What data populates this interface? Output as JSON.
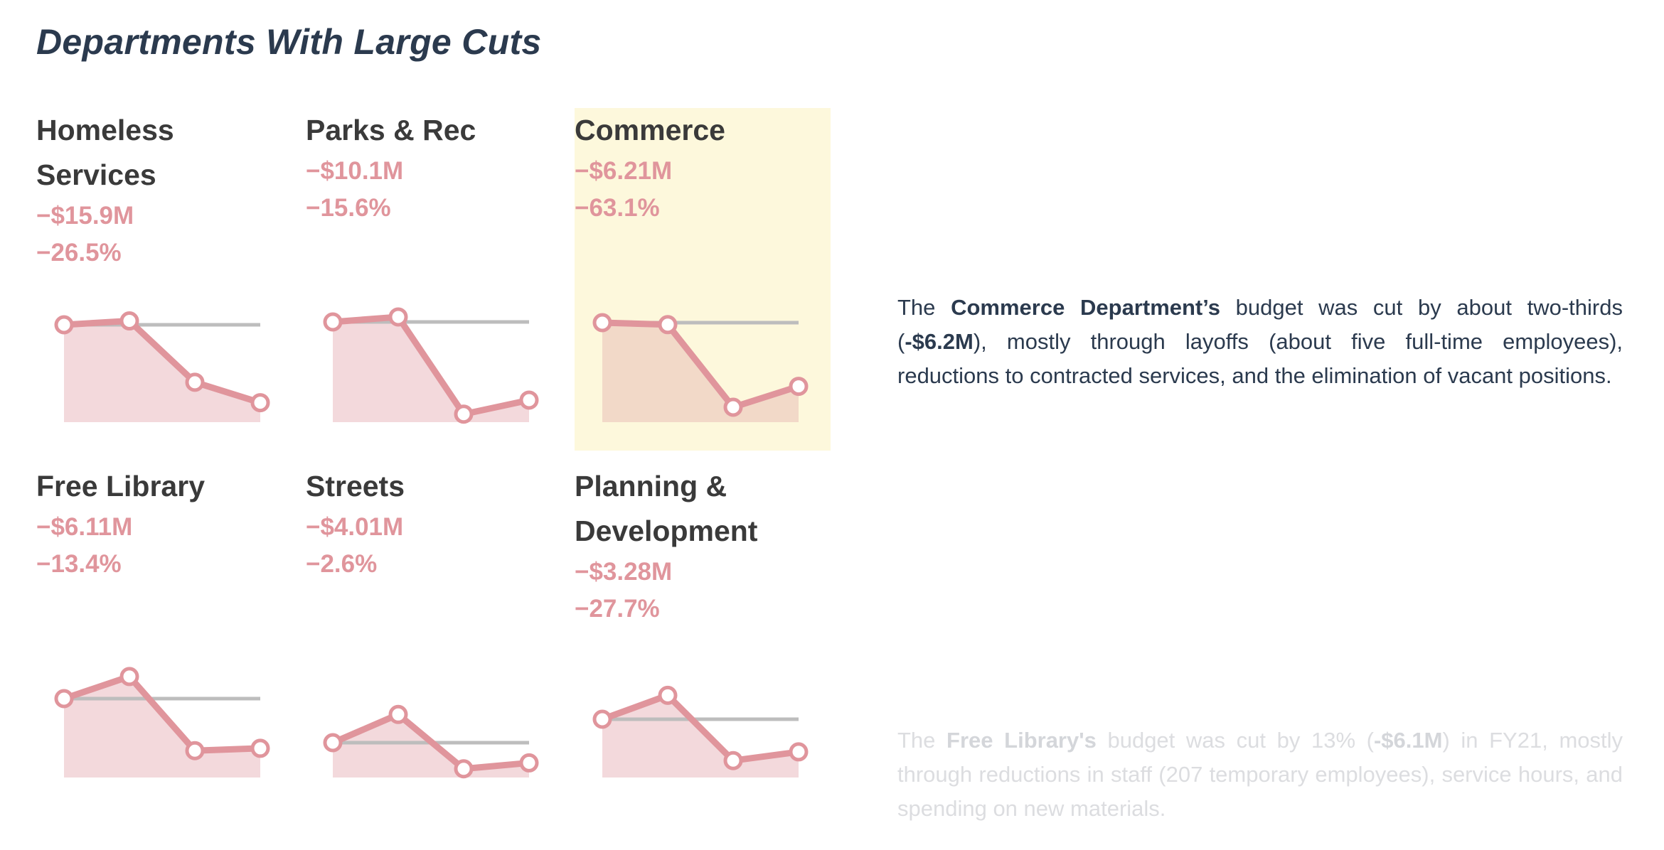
{
  "title": "Departments With Large Cuts",
  "colors": {
    "title": "#2b3a4e",
    "department_name": "#3a3a3a",
    "cut_value": "#e0959c",
    "line": "#e0959c",
    "area_fill": "#f3d9dc",
    "area_fill_highlight": "#f2d9c8",
    "baseline": "#bdbdbd",
    "highlight_background": "#fdf8dc",
    "narrative_text": "#2b3a4e",
    "narrative_faded": "#dcdde0"
  },
  "departments": [
    {
      "name": "Homeless Services",
      "amount": "−$15.9M",
      "percent": "−26.5%",
      "highlighted": false
    },
    {
      "name": "Parks & Rec",
      "amount": "−$10.1M",
      "percent": "−15.6%",
      "highlighted": false
    },
    {
      "name": "Commerce",
      "amount": "−$6.21M",
      "percent": "−63.1%",
      "highlighted": true
    },
    {
      "name": "Free Library",
      "amount": "−$6.11M",
      "percent": "−13.4%",
      "highlighted": false
    },
    {
      "name": "Streets",
      "amount": "−$4.01M",
      "percent": "−2.6%",
      "highlighted": false
    },
    {
      "name": "Planning & Development",
      "amount": "−$3.28M",
      "percent": "−27.7%",
      "highlighted": false
    }
  ],
  "chart_data": {
    "type": "line",
    "small_multiples": true,
    "points_per_series": 4,
    "y_axis": "relative budget, reference line at first value = 1.0",
    "series": [
      {
        "name": "Homeless Services",
        "values": [
          1.0,
          1.04,
          0.41,
          0.2
        ],
        "reference": 1.0
      },
      {
        "name": "Parks & Rec",
        "values": [
          1.0,
          1.05,
          0.08,
          0.22
        ],
        "reference": 1.0
      },
      {
        "name": "Commerce",
        "values": [
          1.0,
          0.98,
          0.15,
          0.36
        ],
        "reference": 1.0
      },
      {
        "name": "Free Library",
        "values": [
          1.0,
          1.28,
          0.34,
          0.37
        ],
        "reference": 1.0
      },
      {
        "name": "Streets",
        "values": [
          1.0,
          1.81,
          0.25,
          0.42
        ],
        "reference": 1.0
      },
      {
        "name": "Planning & Development",
        "values": [
          1.0,
          1.41,
          0.29,
          0.44
        ],
        "reference": 1.0
      }
    ],
    "grid": false,
    "legend": "none"
  },
  "narratives": [
    {
      "prefix": "The ",
      "bold1": "Commerce Department’s",
      "mid": " budget was cut by about two-thirds (",
      "bold2": "-$6.2M",
      "suffix": "), mostly through layoffs (about five full-time employees), reductions to contracted services, and the elimination of vacant positions."
    },
    {
      "prefix": "The ",
      "bold1": "Free Library's",
      "mid": " budget was cut by 13% (",
      "bold2": "-$6.1M",
      "suffix": ") in FY21, mostly through reductions in staff (207 temporary employees), service hours, and spending on new materials."
    }
  ]
}
